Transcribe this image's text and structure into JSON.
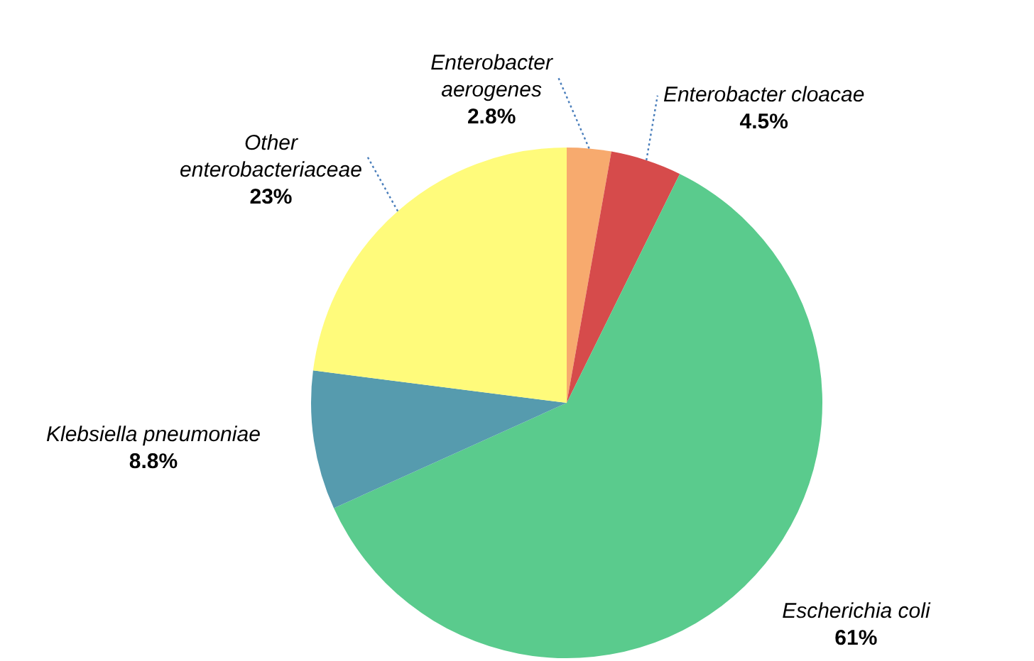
{
  "chart_data": {
    "type": "pie",
    "categories": [
      "Enterobacter aerogenes",
      "Enterobacter cloacae",
      "Escherichia coli",
      "Klebsiella pneumoniae",
      "Other enterobacteriaceae"
    ],
    "values": [
      2.8,
      4.5,
      61,
      8.8,
      23
    ],
    "colors": [
      "#f7aa6e",
      "#d64b4b",
      "#5acb8d",
      "#569bae",
      "#fffb7b"
    ],
    "value_labels": [
      "2.8%",
      "4.5%",
      "61%",
      "8.8%",
      "23%"
    ]
  }
}
